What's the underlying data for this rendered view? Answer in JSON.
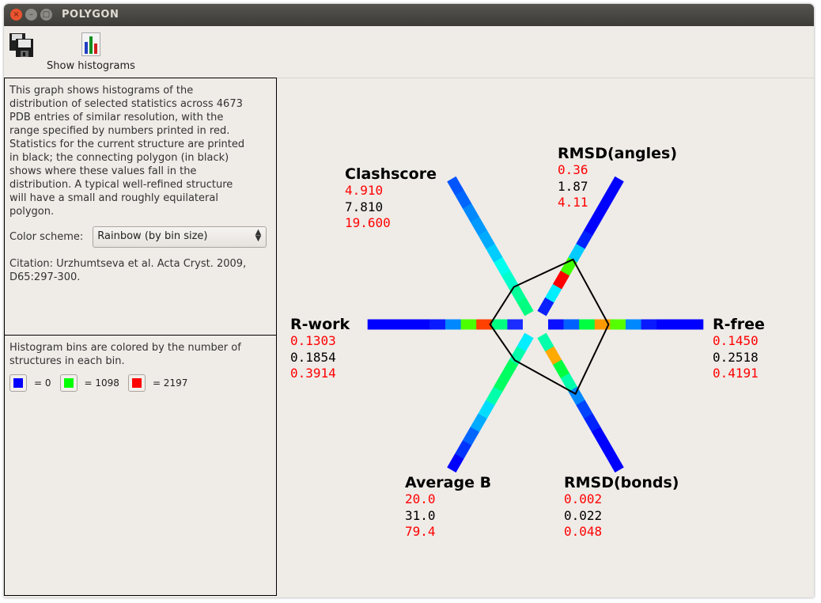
{
  "window": {
    "title": "POLYGON"
  },
  "toolbar": {
    "save_icon": "floppy-disks-icon",
    "histogram_icon": "bar-chart-icon",
    "show_histograms_label": "Show histograms"
  },
  "info": {
    "description_lines": [
      "This graph shows histograms of the",
      "distribution of selected statistics across 4673",
      "PDB entries of similar resolution, with the",
      "range specified by numbers printed in red.",
      "Statistics for the current structure are printed",
      "in black; the connecting polygon (in black)",
      "shows where these values fall in the",
      "distribution. A typical well-refined structure",
      "will have a small and roughly equilateral",
      "polygon."
    ],
    "color_scheme_label": "Color scheme:",
    "color_scheme_value": "Rainbow (by bin size)",
    "citation_lines": [
      "Citation: Urzhumtseva et al. Acta Cryst. 2009,",
      "D65:297-300."
    ]
  },
  "legend": {
    "text_lines": [
      "Histogram bins are colored by the number of",
      "structures in each bin."
    ],
    "items": [
      {
        "color": "#0000ff",
        "label": "= 0"
      },
      {
        "color": "#00ff00",
        "label": "= 1098"
      },
      {
        "color": "#ff0000",
        "label": "= 2197"
      }
    ]
  },
  "chart_data": {
    "type": "polygon-radar-histogram",
    "colors": {
      "range": "#ff0000",
      "current": "#000000",
      "polygon": "#000000"
    },
    "axes": [
      {
        "name": "R-free",
        "direction_deg": 0,
        "low": "0.1450",
        "current": "0.2518",
        "high": "0.4191",
        "bins": [
          "#0a10ff",
          "#0060ff",
          "#00ff40",
          "#ff9900",
          "#55ff00",
          "#0088ff",
          "#0a1aff",
          "#0000ff",
          "#0000ff",
          "#0000ff"
        ]
      },
      {
        "name": "RMSD(angles)",
        "direction_deg": 60,
        "low": "0.36",
        "current": "1.87",
        "high": "4.11",
        "bins": [
          "#0a20ff",
          "#00eeff",
          "#ff0000",
          "#40ff00",
          "#00ccff",
          "#0022ff",
          "#0000ff",
          "#0000ff",
          "#0000ff",
          "#0000ff"
        ]
      },
      {
        "name": "Clashscore",
        "direction_deg": 120,
        "low": "4.910",
        "current": "7.810",
        "high": "19.600",
        "bins": [
          "#00ff80",
          "#00ff99",
          "#00ffcc",
          "#00ffee",
          "#00ccff",
          "#00aaff",
          "#0099ff",
          "#0088ff",
          "#0066ff",
          "#0055ff"
        ]
      },
      {
        "name": "R-work",
        "direction_deg": 180,
        "low": "0.1303",
        "current": "0.1854",
        "high": "0.3914",
        "bins": [
          "#1a2cff",
          "#00ff80",
          "#ff4000",
          "#4cff00",
          "#0088ff",
          "#0a1aff",
          "#0000ff",
          "#0000ff",
          "#0000ff",
          "#0000ff"
        ]
      },
      {
        "name": "Average B",
        "direction_deg": 240,
        "low": "20.0",
        "current": "31.0",
        "high": "79.4",
        "bins": [
          "#00eeff",
          "#00ffaa",
          "#00ff60",
          "#00ff60",
          "#00ffaa",
          "#00ddff",
          "#00aaff",
          "#0066ff",
          "#0033ff",
          "#0000ff"
        ]
      },
      {
        "name": "RMSD(bonds)",
        "direction_deg": 300,
        "low": "0.002",
        "current": "0.022",
        "high": "0.048",
        "bins": [
          "#00ffaa",
          "#ffaa00",
          "#00ff40",
          "#00ffaa",
          "#0088ff",
          "#0044ff",
          "#0022ff",
          "#0000ff",
          "#0000ff",
          "#0000ff"
        ]
      }
    ]
  }
}
